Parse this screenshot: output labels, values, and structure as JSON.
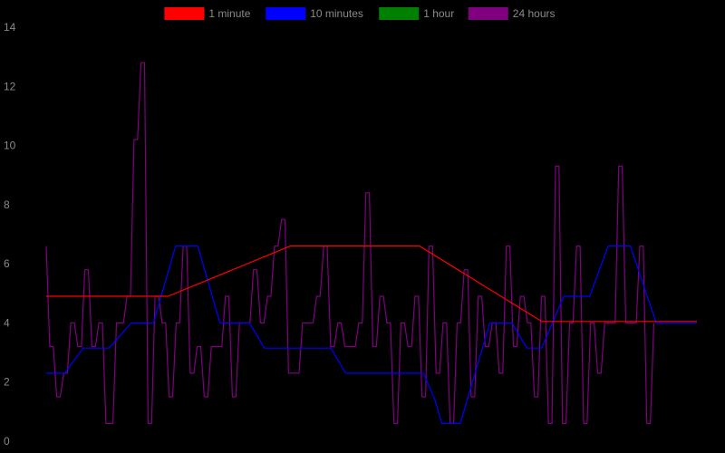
{
  "chart_data": {
    "type": "line",
    "background": "#000000",
    "text_color": "#8a8a8a",
    "grid": false,
    "legend_position": "top-center",
    "ylim": [
      0,
      14
    ],
    "yticks": [
      "0",
      "2",
      "4",
      "6",
      "8",
      "10",
      "12",
      "14"
    ],
    "xticks": [],
    "xlim": [
      0,
      176
    ],
    "series": [
      {
        "name": "1 minute",
        "color": "#ff0000",
        "points": [
          [
            0,
            4.9
          ],
          [
            33,
            4.9
          ],
          [
            66,
            6.6
          ],
          [
            101,
            6.6
          ],
          [
            134,
            4.05
          ],
          [
            176,
            4.05
          ]
        ]
      },
      {
        "name": "10 minutes",
        "color": "#0000ff",
        "points": [
          [
            0,
            2.3
          ],
          [
            5,
            2.3
          ],
          [
            10,
            3.15
          ],
          [
            17,
            3.15
          ],
          [
            23,
            4.0
          ],
          [
            29,
            4.0
          ],
          [
            35,
            6.6
          ],
          [
            41,
            6.6
          ],
          [
            47,
            4.0
          ],
          [
            55,
            4.0
          ],
          [
            59,
            3.15
          ],
          [
            77,
            3.15
          ],
          [
            81,
            2.3
          ],
          [
            102,
            2.3
          ],
          [
            105,
            1.45
          ],
          [
            107,
            0.6
          ],
          [
            112,
            0.6
          ],
          [
            116,
            2.3
          ],
          [
            120,
            4.0
          ],
          [
            126,
            4.0
          ],
          [
            130,
            3.15
          ],
          [
            134,
            3.15
          ],
          [
            140,
            4.9
          ],
          [
            147,
            4.9
          ],
          [
            152,
            6.6
          ],
          [
            158,
            6.6
          ],
          [
            165,
            4.0
          ],
          [
            176,
            4.0
          ]
        ]
      },
      {
        "name": "1 hour",
        "color": "#008000",
        "points": []
      },
      {
        "name": "24 hours",
        "color": "#800080",
        "values": [
          6.6,
          3.2,
          3.2,
          1.5,
          1.5,
          2.3,
          2.3,
          4.0,
          4.0,
          3.2,
          3.2,
          5.8,
          5.8,
          3.2,
          3.2,
          4.0,
          4.0,
          0.6,
          0.6,
          0.6,
          4.0,
          4.0,
          4.0,
          4.9,
          4.9,
          10.2,
          10.2,
          12.8,
          12.8,
          0.6,
          0.6,
          4.9,
          4.9,
          4.0,
          4.0,
          1.5,
          1.5,
          4.0,
          4.0,
          6.6,
          6.6,
          2.3,
          2.3,
          3.2,
          3.2,
          1.5,
          1.5,
          3.2,
          3.2,
          3.2,
          3.2,
          4.9,
          4.9,
          1.5,
          1.5,
          4.0,
          4.0,
          4.0,
          4.0,
          5.8,
          5.8,
          4.0,
          4.0,
          4.9,
          4.9,
          6.6,
          6.6,
          7.5,
          7.5,
          2.3,
          2.3,
          2.3,
          2.3,
          4.0,
          4.0,
          4.0,
          4.0,
          4.9,
          4.9,
          6.6,
          6.6,
          3.2,
          3.2,
          4.0,
          4.0,
          3.2,
          3.2,
          3.2,
          3.2,
          4.0,
          4.0,
          8.4,
          8.4,
          3.2,
          3.2,
          4.9,
          4.9,
          4.0,
          4.0,
          0.6,
          0.6,
          4.0,
          4.0,
          3.2,
          3.2,
          4.9,
          4.9,
          1.5,
          1.5,
          6.6,
          6.6,
          2.3,
          2.3,
          4.0,
          4.0,
          0.6,
          0.6,
          4.0,
          4.0,
          5.8,
          5.8,
          1.5,
          1.5,
          4.9,
          4.9,
          3.2,
          3.2,
          4.0,
          4.0,
          2.3,
          2.3,
          6.6,
          6.6,
          3.2,
          3.2,
          4.9,
          4.9,
          4.0,
          4.0,
          1.5,
          1.5,
          4.9,
          4.9,
          0.6,
          0.6,
          9.3,
          9.3,
          0.6,
          0.6,
          4.0,
          4.0,
          6.6,
          6.6,
          0.6,
          0.6,
          4.0,
          4.0,
          2.3,
          2.3,
          4.0,
          4.0,
          4.0,
          4.0,
          9.3,
          9.3,
          4.0,
          4.0,
          4.0,
          4.0,
          6.6,
          6.6,
          0.6,
          0.6,
          4.0
        ],
        "x_step": 0.95
      }
    ]
  }
}
